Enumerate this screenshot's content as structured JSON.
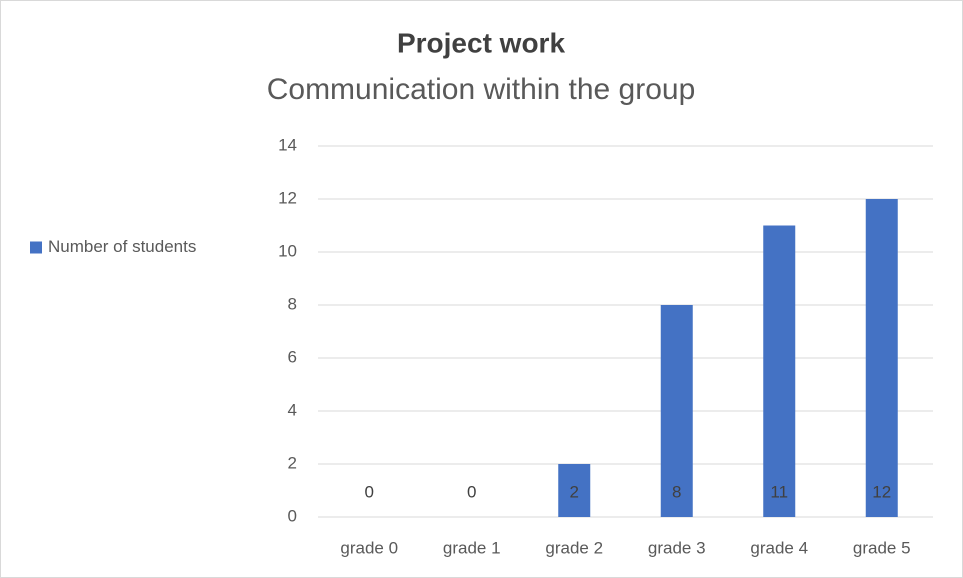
{
  "chart_data": {
    "type": "bar",
    "title": "Project work",
    "subtitle": "Communication within the group",
    "categories": [
      "grade 0",
      "grade 1",
      "grade 2",
      "grade 3",
      "grade 4",
      "grade 5"
    ],
    "series": [
      {
        "name": "Number of students",
        "color": "#4472c4",
        "values": [
          0,
          0,
          2,
          8,
          11,
          12
        ]
      }
    ],
    "ylim": [
      0,
      14
    ],
    "yticks": [
      0,
      2,
      4,
      6,
      8,
      10,
      12,
      14
    ],
    "grid": true,
    "legend": "left",
    "data_labels": true
  }
}
